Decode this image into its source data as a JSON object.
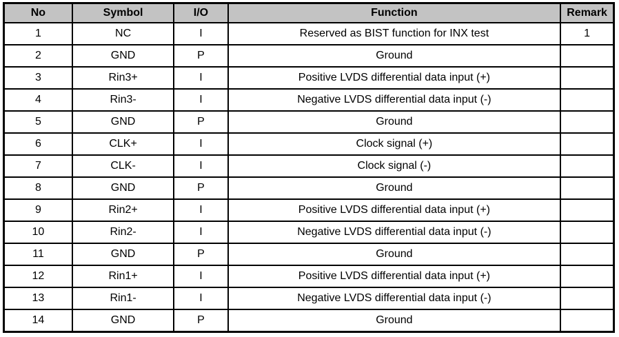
{
  "table": {
    "name": "pin-definition-table",
    "headers": [
      "No",
      "Symbol",
      "I/O",
      "Function",
      "Remark"
    ],
    "rows": [
      [
        "1",
        "NC",
        "I",
        "Reserved as BIST function for INX test",
        "1"
      ],
      [
        "2",
        "GND",
        "P",
        "Ground",
        ""
      ],
      [
        "3",
        "Rin3+",
        "I",
        "Positive LVDS differential data input (+)",
        ""
      ],
      [
        "4",
        "Rin3-",
        "I",
        "Negative LVDS differential data input (-)",
        ""
      ],
      [
        "5",
        "GND",
        "P",
        "Ground",
        ""
      ],
      [
        "6",
        "CLK+",
        "I",
        "Clock signal (+)",
        ""
      ],
      [
        "7",
        "CLK-",
        "I",
        "Clock signal (-)",
        ""
      ],
      [
        "8",
        "GND",
        "P",
        "Ground",
        ""
      ],
      [
        "9",
        "Rin2+",
        "I",
        "Positive LVDS differential data input (+)",
        ""
      ],
      [
        "10",
        "Rin2-",
        "I",
        "Negative LVDS differential data input (-)",
        ""
      ],
      [
        "11",
        "GND",
        "P",
        "Ground",
        ""
      ],
      [
        "12",
        "Rin1+",
        "I",
        "Positive LVDS differential data input (+)",
        ""
      ],
      [
        "13",
        "Rin1-",
        "I",
        "Negative LVDS differential data input (-)",
        ""
      ],
      [
        "14",
        "GND",
        "P",
        "Ground",
        ""
      ]
    ],
    "colors": {
      "header_bg": "#c3c3c3",
      "border": "#000000",
      "text": "#000000",
      "row_bg": "#ffffff"
    }
  }
}
